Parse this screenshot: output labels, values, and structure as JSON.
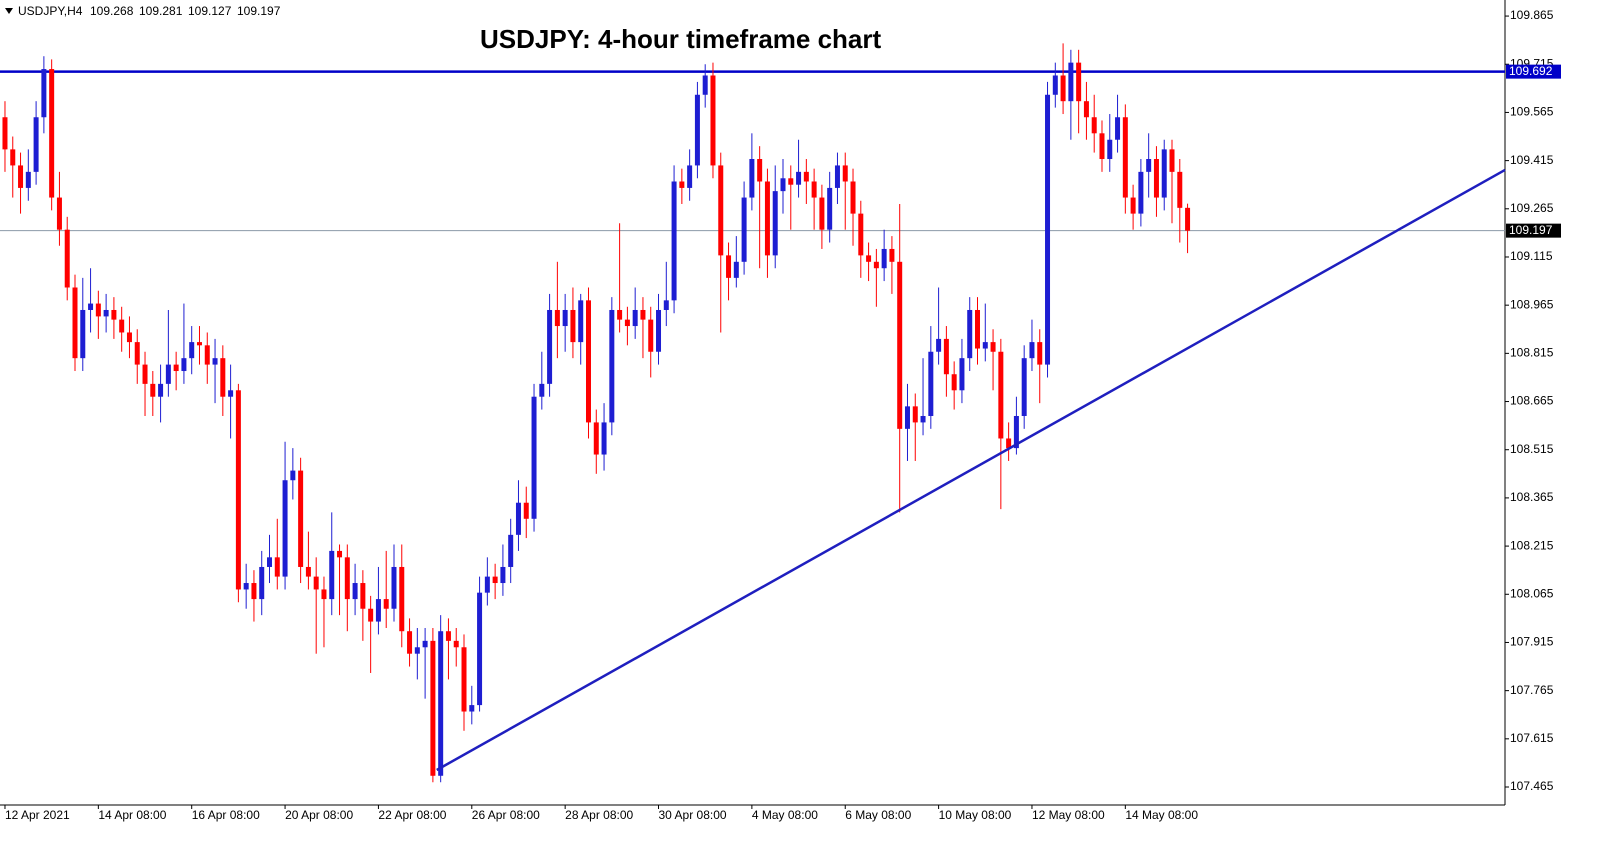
{
  "chart_data": {
    "type": "candlestick",
    "title": "USDJPY: 4-hour timeframe chart",
    "symbol": "USDJPY,H4",
    "header_values": [
      109.268,
      109.281,
      109.127,
      109.197
    ],
    "up_color": "#1e1ed2",
    "down_color": "#ff0000",
    "xlim": [
      -0.64,
      192.8
    ],
    "ylim": [
      107.409,
      109.915
    ],
    "yticks": [
      107.465,
      107.615,
      107.765,
      107.915,
      108.065,
      108.215,
      108.365,
      108.515,
      108.665,
      108.815,
      108.965,
      109.115,
      109.265,
      109.415,
      109.565,
      109.715,
      109.865
    ],
    "xticks": [
      {
        "value": 0,
        "label": "12 Apr 2021"
      },
      {
        "value": 12,
        "label": "14 Apr 08:00"
      },
      {
        "value": 24,
        "label": "16 Apr 08:00"
      },
      {
        "value": 36,
        "label": "20 Apr 08:00"
      },
      {
        "value": 48,
        "label": "22 Apr 08:00"
      },
      {
        "value": 60,
        "label": "26 Apr 08:00"
      },
      {
        "value": 72,
        "label": "28 Apr 08:00"
      },
      {
        "value": 84,
        "label": "30 Apr 08:00"
      },
      {
        "value": 96,
        "label": "4 May 08:00"
      },
      {
        "value": 108,
        "label": "6 May 08:00"
      },
      {
        "value": 120,
        "label": "10 May 08:00"
      },
      {
        "value": 132,
        "label": "12 May 08:00"
      },
      {
        "value": 144,
        "label": "14 May 08:00"
      }
    ],
    "hlines": [
      {
        "value": 109.692,
        "color": "#0000c8",
        "label_bg": "#0000c8"
      },
      {
        "value": 109.197,
        "color": "#8c9aa8",
        "label_bg": "#000000"
      }
    ],
    "trendline": {
      "x": [
        55.5,
        192.8
      ],
      "y": [
        107.518,
        109.386
      ],
      "color": "#1f1fbf"
    },
    "candles": [
      [
        109.55,
        109.6,
        109.38,
        109.45
      ],
      [
        109.45,
        109.49,
        109.3,
        109.4
      ],
      [
        109.4,
        109.44,
        109.25,
        109.33
      ],
      [
        109.33,
        109.45,
        109.29,
        109.38
      ],
      [
        109.38,
        109.6,
        109.34,
        109.55
      ],
      [
        109.55,
        109.74,
        109.5,
        109.7
      ],
      [
        109.7,
        109.73,
        109.26,
        109.3
      ],
      [
        109.3,
        109.38,
        109.15,
        109.2
      ],
      [
        109.2,
        109.24,
        108.98,
        109.02
      ],
      [
        109.02,
        109.06,
        108.76,
        108.8
      ],
      [
        108.8,
        109.05,
        108.76,
        108.95
      ],
      [
        108.95,
        109.08,
        108.88,
        108.97
      ],
      [
        108.97,
        109.01,
        108.86,
        108.93
      ],
      [
        108.93,
        109.0,
        108.88,
        108.95
      ],
      [
        108.95,
        108.99,
        108.86,
        108.92
      ],
      [
        108.92,
        108.96,
        108.82,
        108.88
      ],
      [
        108.88,
        108.93,
        108.8,
        108.85
      ],
      [
        108.85,
        108.89,
        108.72,
        108.78
      ],
      [
        108.78,
        108.82,
        108.62,
        108.72
      ],
      [
        108.72,
        108.76,
        108.62,
        108.68
      ],
      [
        108.68,
        108.78,
        108.6,
        108.72
      ],
      [
        108.72,
        108.95,
        108.68,
        108.78
      ],
      [
        108.78,
        108.82,
        108.7,
        108.76
      ],
      [
        108.76,
        108.97,
        108.72,
        108.8
      ],
      [
        108.8,
        108.9,
        108.75,
        108.85
      ],
      [
        108.85,
        108.9,
        108.78,
        108.84
      ],
      [
        108.84,
        108.88,
        108.72,
        108.78
      ],
      [
        108.78,
        108.86,
        108.66,
        108.8
      ],
      [
        108.8,
        108.84,
        108.62,
        108.68
      ],
      [
        108.68,
        108.78,
        108.55,
        108.7
      ],
      [
        108.7,
        108.72,
        108.04,
        108.08
      ],
      [
        108.08,
        108.16,
        108.02,
        108.1
      ],
      [
        108.1,
        108.14,
        107.98,
        108.05
      ],
      [
        108.05,
        108.2,
        108.0,
        108.15
      ],
      [
        108.15,
        108.25,
        108.1,
        108.18
      ],
      [
        108.18,
        108.3,
        108.08,
        108.12
      ],
      [
        108.12,
        108.54,
        108.08,
        108.42
      ],
      [
        108.42,
        108.52,
        108.36,
        108.45
      ],
      [
        108.45,
        108.49,
        108.1,
        108.15
      ],
      [
        108.15,
        108.26,
        108.08,
        108.12
      ],
      [
        108.12,
        108.18,
        107.88,
        108.08
      ],
      [
        108.08,
        108.12,
        107.9,
        108.05
      ],
      [
        108.05,
        108.32,
        108.0,
        108.2
      ],
      [
        108.2,
        108.22,
        108.0,
        108.18
      ],
      [
        108.18,
        108.22,
        107.95,
        108.05
      ],
      [
        108.05,
        108.16,
        108.0,
        108.1
      ],
      [
        108.1,
        108.14,
        107.92,
        108.02
      ],
      [
        108.02,
        108.06,
        107.82,
        107.98
      ],
      [
        107.98,
        108.15,
        107.94,
        108.05
      ],
      [
        108.05,
        108.2,
        107.96,
        108.02
      ],
      [
        108.02,
        108.22,
        107.98,
        108.15
      ],
      [
        108.15,
        108.22,
        107.9,
        107.95
      ],
      [
        107.95,
        107.99,
        107.84,
        107.88
      ],
      [
        107.88,
        107.96,
        107.8,
        107.9
      ],
      [
        107.9,
        107.96,
        107.74,
        107.92
      ],
      [
        107.92,
        107.96,
        107.48,
        107.5
      ],
      [
        107.5,
        108.0,
        107.48,
        107.95
      ],
      [
        107.95,
        107.99,
        107.8,
        107.92
      ],
      [
        107.92,
        107.96,
        107.84,
        107.9
      ],
      [
        107.9,
        107.94,
        107.64,
        107.7
      ],
      [
        107.7,
        107.78,
        107.66,
        107.72
      ],
      [
        107.72,
        108.12,
        107.7,
        108.07
      ],
      [
        108.07,
        108.18,
        108.03,
        108.12
      ],
      [
        108.12,
        108.16,
        108.05,
        108.1
      ],
      [
        108.1,
        108.22,
        108.06,
        108.15
      ],
      [
        108.15,
        108.3,
        108.1,
        108.25
      ],
      [
        108.25,
        108.42,
        108.2,
        108.35
      ],
      [
        108.35,
        108.4,
        108.24,
        108.3
      ],
      [
        108.3,
        108.72,
        108.26,
        108.68
      ],
      [
        108.68,
        108.82,
        108.64,
        108.72
      ],
      [
        108.72,
        109.0,
        108.68,
        108.95
      ],
      [
        108.95,
        109.1,
        108.8,
        108.9
      ],
      [
        108.9,
        109.0,
        108.82,
        108.95
      ],
      [
        108.95,
        109.02,
        108.8,
        108.85
      ],
      [
        108.85,
        109.0,
        108.78,
        108.98
      ],
      [
        108.98,
        109.02,
        108.55,
        108.6
      ],
      [
        108.6,
        108.64,
        108.44,
        108.5
      ],
      [
        108.5,
        108.66,
        108.45,
        108.6
      ],
      [
        108.6,
        108.99,
        108.56,
        108.95
      ],
      [
        108.95,
        109.22,
        108.88,
        108.92
      ],
      [
        108.92,
        108.96,
        108.84,
        108.9
      ],
      [
        108.9,
        109.02,
        108.86,
        108.95
      ],
      [
        108.95,
        108.99,
        108.8,
        108.92
      ],
      [
        108.92,
        108.96,
        108.74,
        108.82
      ],
      [
        108.82,
        109.0,
        108.78,
        108.95
      ],
      [
        108.95,
        109.1,
        108.9,
        108.98
      ],
      [
        108.98,
        109.4,
        108.94,
        109.35
      ],
      [
        109.35,
        109.39,
        109.28,
        109.33
      ],
      [
        109.33,
        109.45,
        109.29,
        109.4
      ],
      [
        109.4,
        109.66,
        109.36,
        109.62
      ],
      [
        109.62,
        109.715,
        109.58,
        109.68
      ],
      [
        109.68,
        109.72,
        109.36,
        109.4
      ],
      [
        109.4,
        109.44,
        108.88,
        109.12
      ],
      [
        109.12,
        109.16,
        108.98,
        109.05
      ],
      [
        109.05,
        109.18,
        109.02,
        109.1
      ],
      [
        109.1,
        109.35,
        109.06,
        109.3
      ],
      [
        109.3,
        109.5,
        109.26,
        109.42
      ],
      [
        109.42,
        109.46,
        109.08,
        109.35
      ],
      [
        109.35,
        109.39,
        109.05,
        109.12
      ],
      [
        109.12,
        109.4,
        109.08,
        109.32
      ],
      [
        109.32,
        109.42,
        109.25,
        109.36
      ],
      [
        109.36,
        109.4,
        109.2,
        109.34
      ],
      [
        109.34,
        109.48,
        109.3,
        109.38
      ],
      [
        109.38,
        109.42,
        109.28,
        109.35
      ],
      [
        109.35,
        109.39,
        109.2,
        109.3
      ],
      [
        109.3,
        109.34,
        109.14,
        109.2
      ],
      [
        109.2,
        109.38,
        109.16,
        109.33
      ],
      [
        109.33,
        109.44,
        109.28,
        109.4
      ],
      [
        109.4,
        109.44,
        109.2,
        109.35
      ],
      [
        109.35,
        109.39,
        109.15,
        109.25
      ],
      [
        109.25,
        109.29,
        109.05,
        109.12
      ],
      [
        109.12,
        109.16,
        109.04,
        109.1
      ],
      [
        109.1,
        109.14,
        108.96,
        109.08
      ],
      [
        109.08,
        109.2,
        109.04,
        109.14
      ],
      [
        109.14,
        109.18,
        109.0,
        109.1
      ],
      [
        109.1,
        109.28,
        108.32,
        108.58
      ],
      [
        108.58,
        108.72,
        108.48,
        108.65
      ],
      [
        108.65,
        108.69,
        108.48,
        108.6
      ],
      [
        108.6,
        108.8,
        108.56,
        108.62
      ],
      [
        108.62,
        108.9,
        108.58,
        108.82
      ],
      [
        108.82,
        109.02,
        108.78,
        108.86
      ],
      [
        108.86,
        108.9,
        108.68,
        108.75
      ],
      [
        108.75,
        108.79,
        108.64,
        108.7
      ],
      [
        108.7,
        108.86,
        108.66,
        108.8
      ],
      [
        108.8,
        108.99,
        108.76,
        108.95
      ],
      [
        108.95,
        108.99,
        108.78,
        108.83
      ],
      [
        108.83,
        108.97,
        108.79,
        108.85
      ],
      [
        108.85,
        108.89,
        108.7,
        108.82
      ],
      [
        108.82,
        108.86,
        108.33,
        108.55
      ],
      [
        108.55,
        108.6,
        108.48,
        108.52
      ],
      [
        108.52,
        108.68,
        108.5,
        108.62
      ],
      [
        108.62,
        108.84,
        108.58,
        108.8
      ],
      [
        108.8,
        108.92,
        108.76,
        108.85
      ],
      [
        108.85,
        108.89,
        108.66,
        108.78
      ],
      [
        108.78,
        109.66,
        108.74,
        109.62
      ],
      [
        109.62,
        109.72,
        109.58,
        109.68
      ],
      [
        109.68,
        109.78,
        109.56,
        109.6
      ],
      [
        109.6,
        109.76,
        109.48,
        109.72
      ],
      [
        109.72,
        109.76,
        109.5,
        109.6
      ],
      [
        109.6,
        109.66,
        109.48,
        109.55
      ],
      [
        109.55,
        109.62,
        109.44,
        109.5
      ],
      [
        109.5,
        109.54,
        109.38,
        109.42
      ],
      [
        109.42,
        109.56,
        109.38,
        109.48
      ],
      [
        109.48,
        109.62,
        109.44,
        109.55
      ],
      [
        109.55,
        109.59,
        109.25,
        109.3
      ],
      [
        109.3,
        109.34,
        109.2,
        109.25
      ],
      [
        109.25,
        109.42,
        109.21,
        109.38
      ],
      [
        109.38,
        109.5,
        109.3,
        109.42
      ],
      [
        109.42,
        109.46,
        109.24,
        109.3
      ],
      [
        109.3,
        109.48,
        109.26,
        109.45
      ],
      [
        109.45,
        109.48,
        109.22,
        109.38
      ],
      [
        109.38,
        109.42,
        109.16,
        109.268
      ],
      [
        109.268,
        109.281,
        109.127,
        109.197
      ]
    ]
  }
}
